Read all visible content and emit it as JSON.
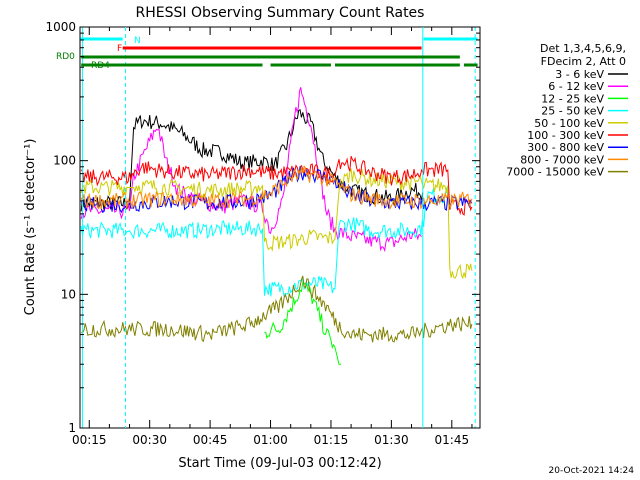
{
  "chart_data": {
    "type": "line",
    "title": "RHESSI Observing Summary Count Rates",
    "xlabel": "Start Time (09-Jul-03 00:12:42)",
    "ylabel": "Count Rate (s⁻¹ detector⁻¹)",
    "yscale": "log",
    "ylim": [
      1,
      1000
    ],
    "xlim_minutes": [
      12.7,
      112
    ],
    "x_ticks": [
      {
        "minute": 15,
        "label": "00:15"
      },
      {
        "minute": 30,
        "label": "00:30"
      },
      {
        "minute": 45,
        "label": "00:45"
      },
      {
        "minute": 60,
        "label": "01:00"
      },
      {
        "minute": 75,
        "label": "01:15"
      },
      {
        "minute": 90,
        "label": "01:30"
      },
      {
        "minute": 105,
        "label": "01:45"
      }
    ],
    "y_ticks": [
      {
        "value": 1,
        "label": "1"
      },
      {
        "value": 10,
        "label": "10"
      },
      {
        "value": 100,
        "label": "100"
      },
      {
        "value": 1000,
        "label": "1000"
      }
    ],
    "legend": {
      "header": [
        "Det 1,3,4,5,6,9,",
        "FDecim 2, Att 0"
      ],
      "placement": "top-right"
    },
    "series": [
      {
        "name": "3 - 6 keV",
        "color": "#000000",
        "x": [
          13,
          25,
          26,
          28,
          33,
          38,
          43,
          48,
          53,
          58,
          61,
          64,
          67,
          70,
          73,
          76,
          80,
          85,
          90,
          95,
          97.8
        ],
        "y": [
          48,
          48,
          180,
          200,
          190,
          160,
          120,
          115,
          95,
          100,
          92,
          130,
          230,
          190,
          100,
          75,
          60,
          55,
          52,
          60,
          58
        ]
      },
      {
        "name": "6 - 12 keV",
        "color": "#ff00ff",
        "x": [
          13,
          25,
          26,
          29,
          32,
          34,
          37,
          42,
          48,
          53,
          58,
          60,
          63,
          66,
          67.5,
          70,
          72,
          74,
          76,
          80,
          85,
          90,
          95,
          97.5
        ],
        "y": [
          42,
          42,
          75,
          120,
          185,
          100,
          60,
          50,
          45,
          50,
          45,
          30,
          50,
          210,
          340,
          190,
          85,
          40,
          30,
          27,
          25,
          24,
          28,
          27
        ]
      },
      {
        "name": "12 - 25 keV",
        "color": "#00ff00",
        "x": [
          58.5,
          60,
          62,
          64,
          66,
          68,
          70,
          72,
          74,
          76,
          77,
          77.5
        ],
        "y": [
          5,
          5.5,
          5.5,
          7,
          9,
          12,
          10,
          7,
          5,
          4,
          3,
          3
        ]
      },
      {
        "name": "25 - 50 keV",
        "color": "#00ffff",
        "x": [
          13,
          25,
          26,
          30,
          40,
          50,
          58,
          58.5,
          62,
          68,
          72,
          76,
          77,
          80,
          85,
          90,
          95,
          98,
          98.5,
          104
        ],
        "y": [
          30,
          30,
          30,
          30,
          30,
          31,
          31,
          11,
          11,
          12,
          12,
          11,
          33,
          34,
          30,
          30,
          30,
          32,
          55,
          55
        ]
      },
      {
        "name": "50 - 100 keV",
        "color": "#cccc00",
        "x": [
          13,
          25,
          26,
          35,
          45,
          55,
          58,
          58.5,
          65,
          70,
          76,
          77,
          80,
          85,
          90,
          95,
          97.5,
          98,
          104,
          104.5,
          110
        ],
        "y": [
          63,
          63,
          65,
          63,
          60,
          62,
          65,
          24,
          25,
          27,
          26,
          65,
          80,
          72,
          70,
          68,
          70,
          65,
          65,
          15,
          15
        ]
      },
      {
        "name": "100 - 300 keV",
        "color": "#ff0000",
        "x": [
          13,
          25,
          28,
          35,
          45,
          55,
          60,
          65,
          68,
          72,
          76,
          77,
          80,
          85,
          90,
          95,
          97.5,
          98,
          104,
          104.5,
          110
        ],
        "y": [
          75,
          75,
          90,
          82,
          78,
          85,
          80,
          82,
          85,
          82,
          78,
          100,
          95,
          82,
          75,
          78,
          85,
          85,
          85,
          45,
          45
        ]
      },
      {
        "name": "300 - 800 keV",
        "color": "#0000ff",
        "x": [
          13,
          25,
          35,
          45,
          55,
          60,
          65,
          68,
          72,
          76,
          80,
          85,
          90,
          95,
          100,
          105,
          110
        ],
        "y": [
          47,
          47,
          50,
          48,
          50,
          55,
          75,
          82,
          78,
          70,
          55,
          50,
          48,
          48,
          48,
          48,
          48
        ]
      },
      {
        "name": "800 - 7000 keV",
        "color": "#ff8800",
        "x": [
          13,
          25,
          35,
          45,
          55,
          60,
          65,
          68,
          72,
          76,
          80,
          85,
          90,
          95,
          100,
          105,
          110
        ],
        "y": [
          50,
          50,
          52,
          50,
          52,
          57,
          75,
          80,
          76,
          68,
          56,
          52,
          50,
          50,
          50,
          50,
          52
        ]
      },
      {
        "name": "7000 - 15000 keV",
        "color": "#808000",
        "x": [
          13,
          25,
          35,
          45,
          55,
          58.5,
          62,
          66,
          68,
          70,
          74,
          76.5,
          80,
          85,
          90,
          95,
          100,
          105,
          110
        ],
        "y": [
          5.5,
          5.5,
          5.5,
          5,
          6,
          7,
          8,
          11,
          13,
          11,
          8,
          6,
          5,
          5,
          5,
          5,
          5.5,
          6,
          6
        ]
      }
    ],
    "state_bars": [
      {
        "label": "N",
        "color": "#00ffff",
        "segments": [
          [
            12.8,
            23.3
          ],
          [
            98,
            111.4
          ]
        ]
      },
      {
        "label": "F",
        "color": "#ff0000",
        "segments": [
          [
            23.3,
            97.5
          ]
        ]
      },
      {
        "label": "RD0",
        "color": "#008000",
        "segments": [
          [
            13,
            107
          ]
        ]
      },
      {
        "label": "RD4",
        "color": "#008000",
        "segments": [
          [
            13,
            58
          ],
          [
            60,
            75
          ],
          [
            76,
            107
          ],
          [
            108,
            111.4
          ]
        ]
      }
    ],
    "vertical_markers": [
      {
        "minute": 13.3,
        "color": "#00ffff",
        "style": "solid"
      },
      {
        "minute": 24,
        "color": "#00ffff",
        "style": "dashed"
      },
      {
        "minute": 97.8,
        "color": "#00ffff",
        "style": "solid"
      },
      {
        "minute": 110.8,
        "color": "#00ffff",
        "style": "dashed"
      }
    ]
  },
  "footer": {
    "date": "20-Oct-2021 14:24"
  }
}
